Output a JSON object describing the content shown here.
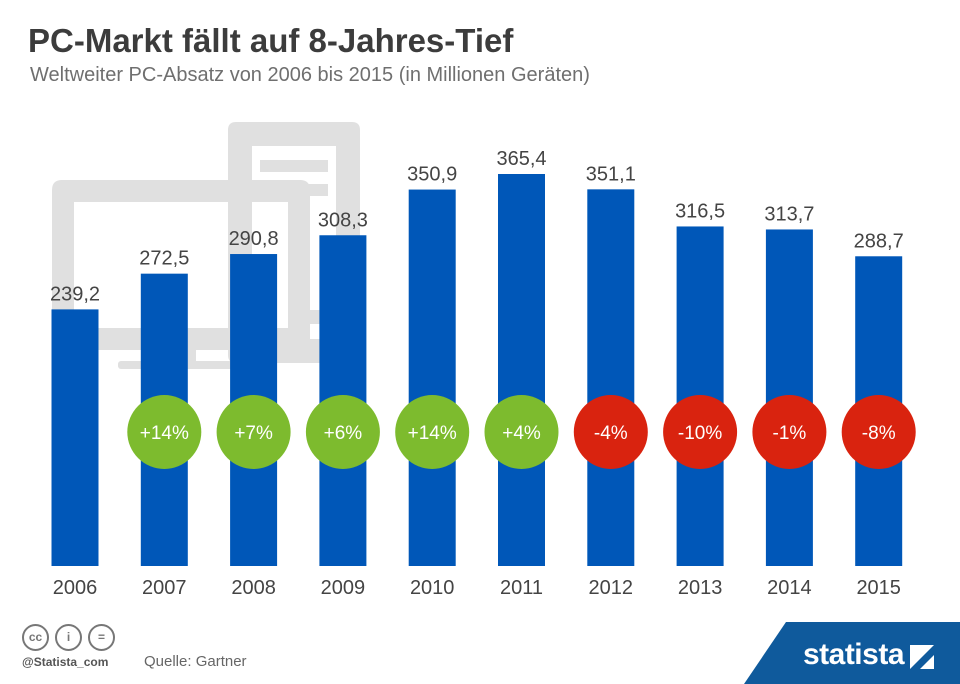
{
  "header": {
    "title": "PC-Markt fällt auf 8-Jahres-Tief",
    "subtitle": "Weltweiter PC-Absatz von 2006 bis 2015 (in Millionen Geräten)"
  },
  "chart_data": {
    "type": "bar",
    "title": "PC-Markt fällt auf 8-Jahres-Tief",
    "subtitle": "Weltweiter PC-Absatz von 2006 bis 2015 (in Millionen Geräten)",
    "categories": [
      "2006",
      "2007",
      "2008",
      "2009",
      "2010",
      "2011",
      "2012",
      "2013",
      "2014",
      "2015"
    ],
    "values": [
      239.2,
      272.5,
      290.8,
      308.3,
      350.9,
      365.4,
      351.1,
      316.5,
      313.7,
      288.7
    ],
    "value_labels": [
      "239,2",
      "272,5",
      "290,8",
      "308,3",
      "350,9",
      "365,4",
      "351,1",
      "316,5",
      "313,7",
      "288,7"
    ],
    "changes": [
      "",
      "+14%",
      "+7%",
      "+6%",
      "+14%",
      "+4%",
      "-4%",
      "-10%",
      "-1%",
      "-8%"
    ],
    "ylim": [
      0,
      365.4
    ],
    "grid": false,
    "legend": "none",
    "colors": {
      "bar": "#0057b8",
      "positive": "#7dbb2e",
      "negative": "#d9230f",
      "background_icon": "#e0e0e0"
    }
  },
  "footer": {
    "handle": "@Statista_com",
    "source": "Quelle: Gartner",
    "brand": "statista",
    "license_icons": [
      "cc-icon",
      "attribution-icon",
      "no-derivatives-icon"
    ],
    "license_glyphs": [
      "cc",
      "i",
      "="
    ],
    "brand_color": "#0f5a9c"
  }
}
